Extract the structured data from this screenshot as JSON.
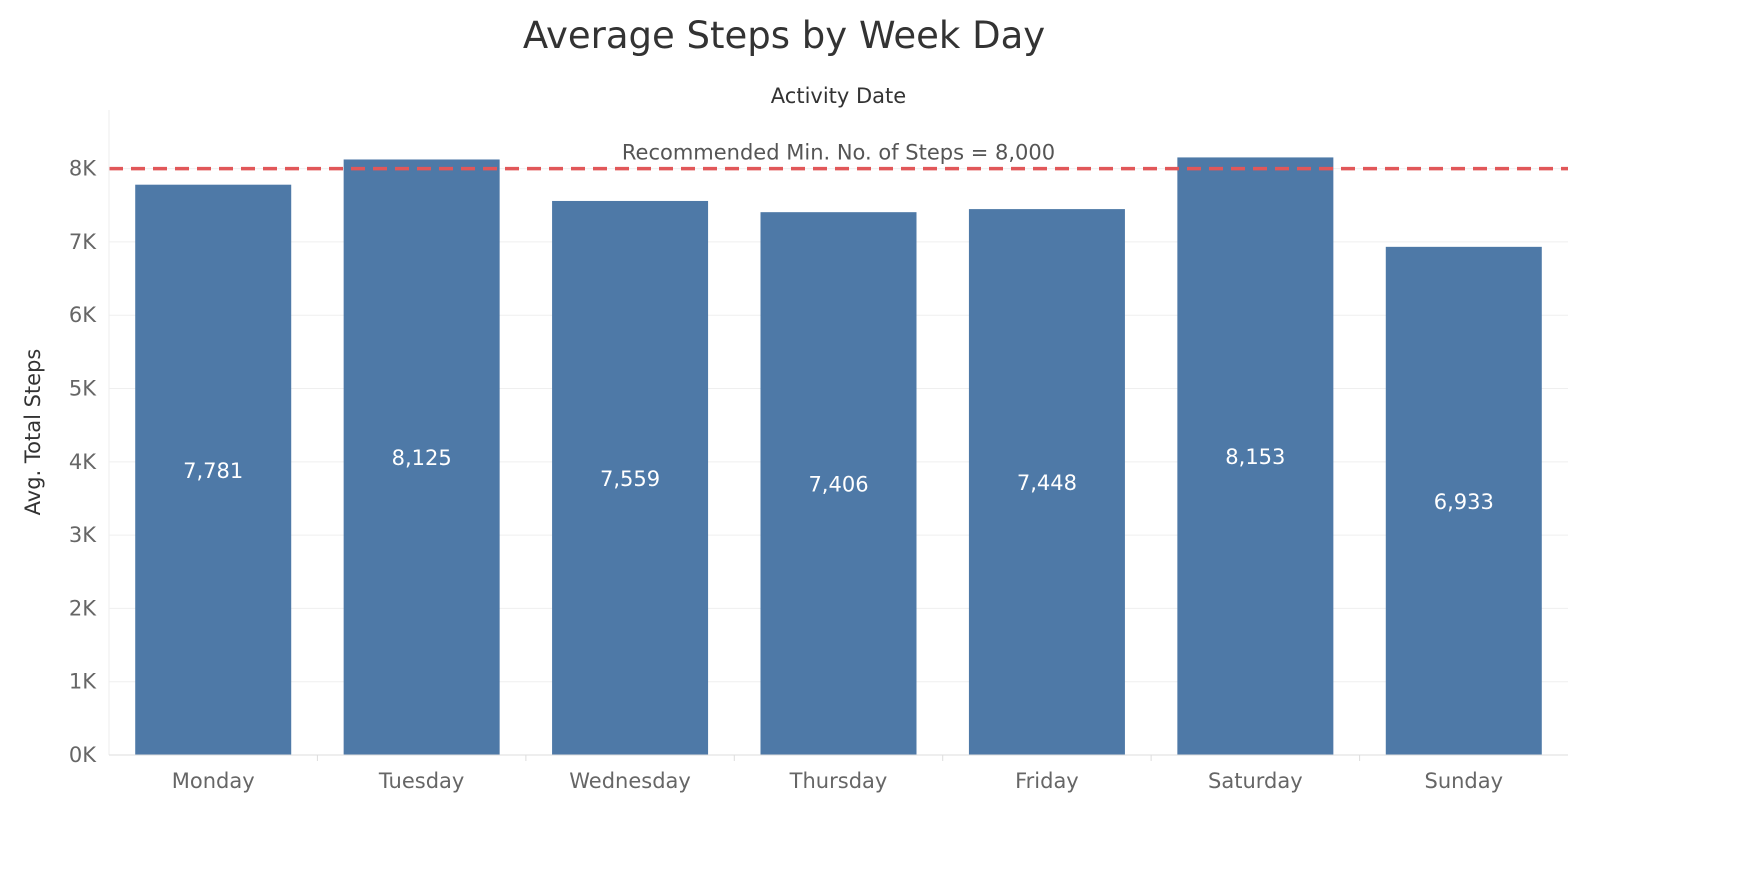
{
  "chart_data": {
    "type": "bar",
    "title": "Average Steps by Week Day",
    "subtitle": "Activity Date",
    "xlabel": "",
    "ylabel": "Avg. Total Steps",
    "categories": [
      "Monday",
      "Tuesday",
      "Wednesday",
      "Thursday",
      "Friday",
      "Saturday",
      "Sunday"
    ],
    "values": [
      7781,
      8125,
      7559,
      7406,
      7448,
      8153,
      6933
    ],
    "data_labels": [
      "7,781",
      "8,125",
      "7,559",
      "7,406",
      "7,448",
      "8,153",
      "6,933"
    ],
    "ylim": [
      0,
      8800
    ],
    "y_ticks": [
      0,
      1000,
      2000,
      3000,
      4000,
      5000,
      6000,
      7000,
      8000
    ],
    "y_tick_labels": [
      "0K",
      "1K",
      "2K",
      "3K",
      "4K",
      "5K",
      "6K",
      "7K",
      "8K"
    ],
    "grid": true,
    "legend": "none",
    "reference_line": {
      "value": 8000,
      "label": "Recommended Min. No. of Steps  = 8,000",
      "color": "#e15759",
      "style": "dashed"
    },
    "bar_color": "#4e79a7"
  }
}
